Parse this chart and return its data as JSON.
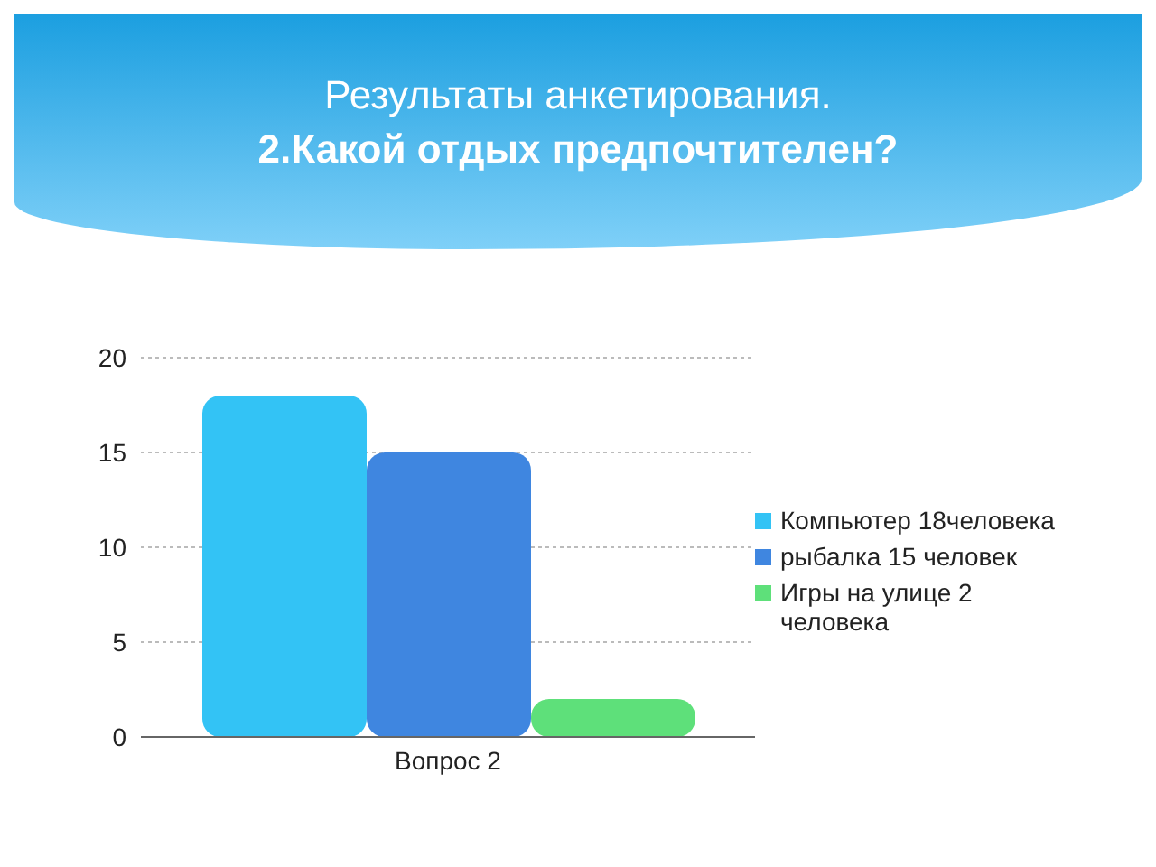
{
  "chart_data": {
    "type": "bar",
    "title": "Результаты анкетирования.",
    "subtitle": "2.Какой отдых предпочтителен?",
    "categories": [
      "Вопрос 2"
    ],
    "series": [
      {
        "name": "Компьютер 18человека",
        "color": "#33c3f5",
        "values": [
          18
        ]
      },
      {
        "name": "рыбалка 15 человек",
        "color": "#3f86e0",
        "values": [
          15
        ]
      },
      {
        "name": "Игры на улице 2 человека",
        "color": "#5ee07a",
        "values": [
          2
        ]
      }
    ],
    "ylim": [
      0,
      20
    ],
    "yticks": [
      0,
      5,
      10,
      15,
      20
    ],
    "grid": "y",
    "legend": "right"
  }
}
